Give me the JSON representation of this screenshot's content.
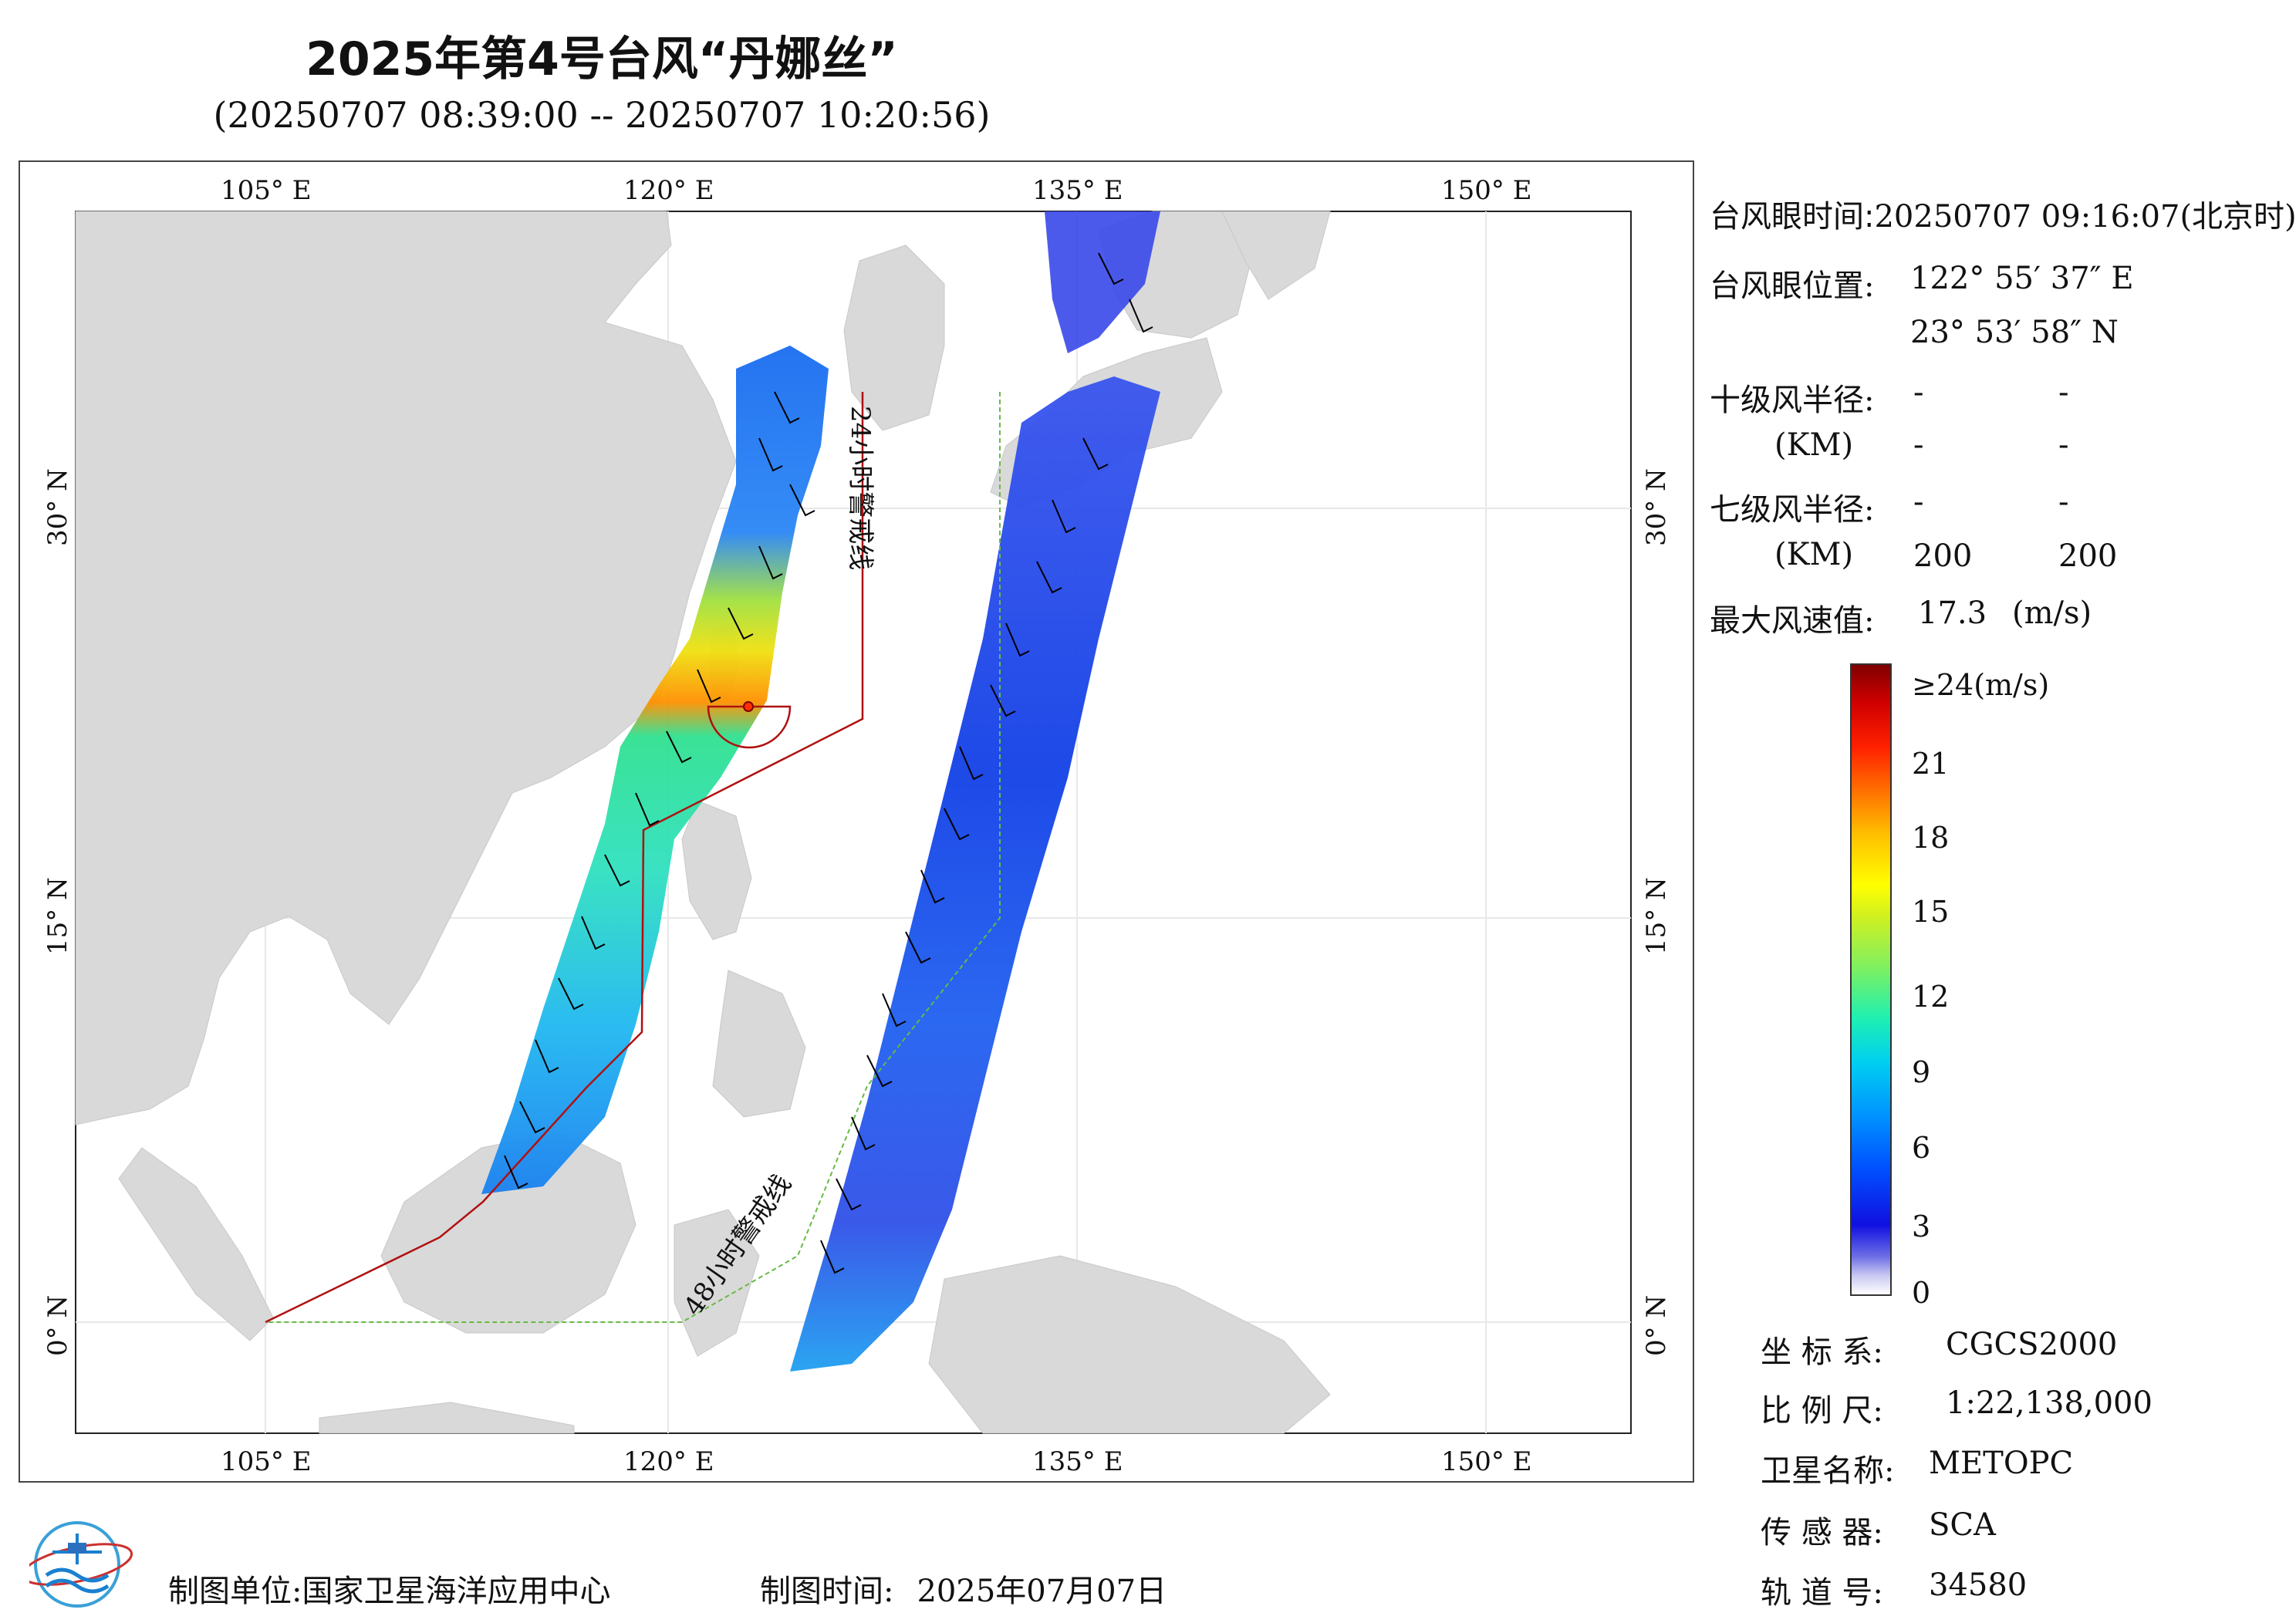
{
  "title": "2025年第4号台风“丹娜丝”",
  "subtitle": "(20250707 08:39:00 -- 20250707 10:20:56)",
  "map": {
    "lon_ticks": [
      "105° E",
      "120° E",
      "135° E",
      "150° E"
    ],
    "lat_ticks": [
      "30° N",
      "15° N",
      "0° N"
    ],
    "warning_line_24h": "24小时警戒线",
    "warning_line_48h": "48小时警戒线",
    "colors": {
      "land": "#d9d9d9",
      "sea": "#ffffff",
      "line_24h": "#b01010",
      "line_48h": "#66bb44"
    }
  },
  "panel": {
    "eye_time_label": "台风眼时间:",
    "eye_time_value": "20250707 09:16:07(北京时)",
    "eye_pos_label": "台风眼位置:",
    "eye_lon": "122° 55′ 37″ E",
    "eye_lat": "23° 53′ 58″ N",
    "r10_label": "十级风半径:",
    "r7_label": "七级风半径:",
    "km_label": "(KM)",
    "r10_values": [
      "-",
      "-",
      "-",
      "-"
    ],
    "r7_values": [
      "-",
      "-",
      "200",
      "200"
    ],
    "max_wind_label": "最大风速值:",
    "max_wind_value": "17.3",
    "max_wind_unit": "(m/s)"
  },
  "colorbar": {
    "labels": [
      "≥24(m/s)",
      "21",
      "18",
      "15",
      "12",
      "9",
      "6",
      "3",
      "0"
    ]
  },
  "meta": {
    "crs_label": "坐 标 系:",
    "crs_value": "CGCS2000",
    "scale_label": "比 例 尺:",
    "scale_value": "1:22,138,000",
    "satellite_label": "卫星名称:",
    "satellite_value": "METOPC",
    "sensor_label": "传 感 器:",
    "sensor_value": "SCA",
    "orbit_label": "轨 道 号:",
    "orbit_value": "34580"
  },
  "footer": {
    "org_label": "制图单位:",
    "org_value": "国家卫星海洋应用中心",
    "time_label": "制图时间:",
    "time_value": "2025年07月07日"
  }
}
